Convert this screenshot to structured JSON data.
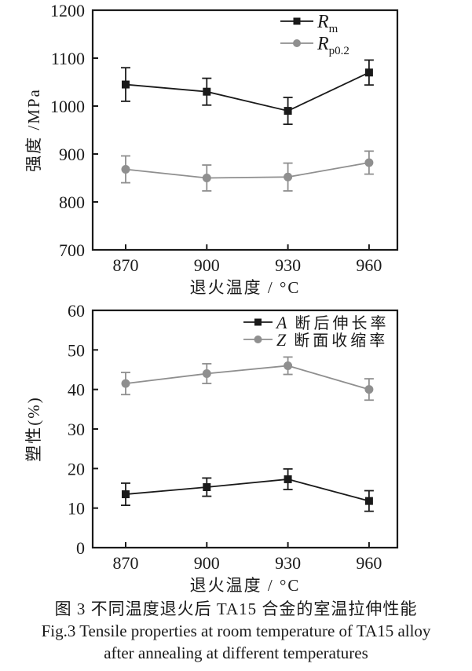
{
  "figure": {
    "caption_cn": "图 3  不同温度退火后 TA15 合金的室温拉伸性能",
    "caption_en_line1": "Fig.3  Tensile properties at room temperature of TA15 alloy",
    "caption_en_line2": "after annealing at different temperatures"
  },
  "colors": {
    "black_series": "#1a1a1a",
    "gray_series": "#8f8f8f",
    "text": "#1a1a1a",
    "background": "#ffffff"
  },
  "chart_data": [
    {
      "type": "line",
      "title": "",
      "xlabel": "退火温度 / °C",
      "ylabel": "强度 /MPa",
      "categories": [
        "870",
        "900",
        "930",
        "960"
      ],
      "x_values": [
        870,
        900,
        930,
        960
      ],
      "ylim": [
        700,
        1200
      ],
      "yticks": [
        "700",
        "800",
        "900",
        "1000",
        "1100",
        "1200"
      ],
      "grid": false,
      "legend_position": "upper-right-inside",
      "series": [
        {
          "name": "Rm",
          "legend_main": "R",
          "legend_sub": "m",
          "legend_text": "",
          "marker": "square",
          "color": "#1a1a1a",
          "values": [
            1045,
            1030,
            990,
            1070
          ],
          "errors": [
            35,
            28,
            28,
            26
          ]
        },
        {
          "name": "Rp0.2",
          "legend_main": "R",
          "legend_sub": "p0.2",
          "legend_text": "",
          "marker": "circle",
          "color": "#8f8f8f",
          "values": [
            868,
            850,
            852,
            882
          ],
          "errors": [
            28,
            27,
            29,
            24
          ]
        }
      ]
    },
    {
      "type": "line",
      "title": "",
      "xlabel": "退火温度 / °C",
      "ylabel": "塑性(%)",
      "categories": [
        "870",
        "900",
        "930",
        "960"
      ],
      "x_values": [
        870,
        900,
        930,
        960
      ],
      "ylim": [
        0,
        60
      ],
      "yticks": [
        "0",
        "10",
        "20",
        "30",
        "40",
        "50",
        "60"
      ],
      "grid": false,
      "legend_position": "upper-right-inside",
      "series": [
        {
          "name": "A elongation after fracture",
          "legend_main": "A",
          "legend_sub": "",
          "legend_text": "断后伸长率",
          "marker": "square",
          "color": "#1a1a1a",
          "values": [
            13.5,
            15.3,
            17.3,
            11.8
          ],
          "errors": [
            2.8,
            2.3,
            2.6,
            2.6
          ]
        },
        {
          "name": "Z reduction of area",
          "legend_main": "Z",
          "legend_sub": "",
          "legend_text": "断面收缩率",
          "marker": "circle",
          "color": "#8f8f8f",
          "values": [
            41.5,
            44,
            46,
            40
          ],
          "errors": [
            2.8,
            2.5,
            2.2,
            2.7
          ]
        }
      ]
    }
  ]
}
